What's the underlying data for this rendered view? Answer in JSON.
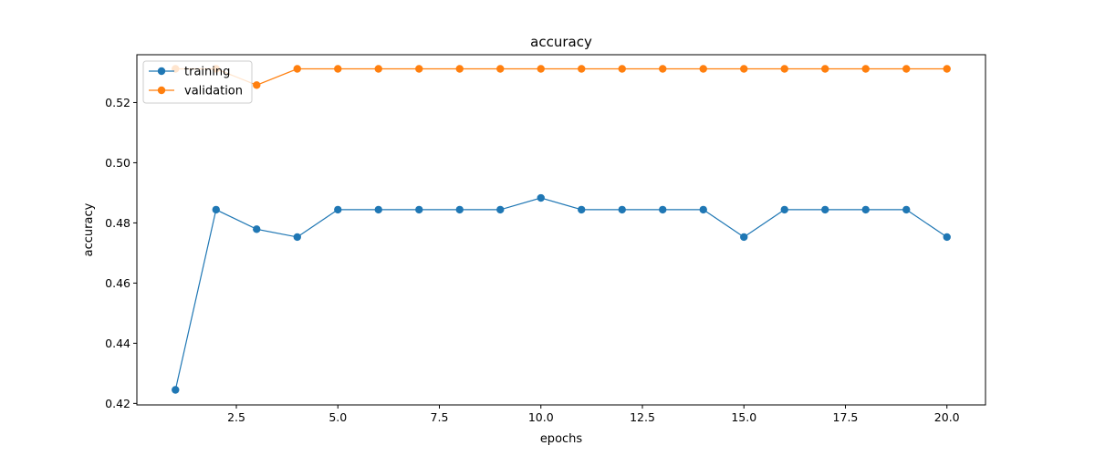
{
  "chart_data": {
    "type": "line",
    "title": "accuracy",
    "xlabel": "epochs",
    "ylabel": "accuracy",
    "xlim": [
      0.05,
      20.95
    ],
    "ylim": [
      0.4195,
      0.5359
    ],
    "xticks": [
      2.5,
      5.0,
      7.5,
      10.0,
      12.5,
      15.0,
      17.5,
      20.0
    ],
    "xtick_labels": [
      "2.5",
      "5.0",
      "7.5",
      "10.0",
      "12.5",
      "15.0",
      "17.5",
      "20.0"
    ],
    "yticks": [
      0.42,
      0.44,
      0.46,
      0.48,
      0.5,
      0.52
    ],
    "ytick_labels": [
      "0.42",
      "0.44",
      "0.46",
      "0.48",
      "0.50",
      "0.52"
    ],
    "grid": false,
    "legend_position": "upper-left",
    "x": [
      1,
      2,
      3,
      4,
      5,
      6,
      7,
      8,
      9,
      10,
      11,
      12,
      13,
      14,
      15,
      16,
      17,
      18,
      19,
      20
    ],
    "series": [
      {
        "name": "training",
        "color": "#1f77b4",
        "values": [
          0.4245,
          0.4844,
          0.4779,
          0.4753,
          0.4844,
          0.4844,
          0.4844,
          0.4844,
          0.4844,
          0.4883,
          0.4844,
          0.4844,
          0.4844,
          0.4844,
          0.4753,
          0.4844,
          0.4844,
          0.4844,
          0.4844,
          0.4753
        ]
      },
      {
        "name": "validation",
        "color": "#ff7f0e",
        "values": [
          0.5312,
          0.5312,
          0.5258,
          0.5312,
          0.5312,
          0.5312,
          0.5312,
          0.5312,
          0.5312,
          0.5312,
          0.5312,
          0.5312,
          0.5312,
          0.5312,
          0.5312,
          0.5312,
          0.5312,
          0.5312,
          0.5312,
          0.5312
        ]
      }
    ]
  }
}
